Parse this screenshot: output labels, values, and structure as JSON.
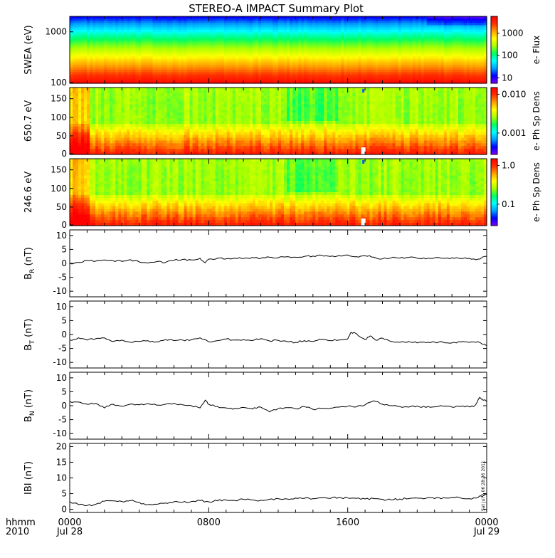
{
  "title": "STEREO-A IMPACT Summary Plot",
  "time_axis": {
    "prefix_top": "hhmm",
    "prefix_bottom": "2010",
    "ticks": [
      {
        "hhmm": "0000",
        "date": "Jul 28",
        "hour": 0
      },
      {
        "hhmm": "0800",
        "date": "",
        "hour": 8
      },
      {
        "hhmm": "1600",
        "date": "",
        "hour": 16
      },
      {
        "hhmm": "0000",
        "date": "Jul 29",
        "hour": 24
      }
    ]
  },
  "stamp": "Sat Jul  2 06:28:36 2011",
  "colors": {
    "colormap": [
      "#7f00ff",
      "#0000ff",
      "#00a0ff",
      "#00ffff",
      "#00ff60",
      "#a8ff00",
      "#ffff00",
      "#ffa000",
      "#ff3000",
      "#ff0000"
    ],
    "line": "#000000"
  },
  "chart_data": [
    {
      "type": "heatmap",
      "panel": "swea",
      "ylabel": "SWEA (eV)",
      "yscale": "log",
      "ylim": [
        100,
        2000
      ],
      "yticks": [
        "1000",
        "100"
      ],
      "cbar_label": "e- Flux",
      "cbar_scale": "log",
      "cbar_ticks": [
        "1000",
        "100",
        "10"
      ],
      "x_hours": [
        0,
        24
      ],
      "description_bands": [
        {
          "energy_eV": 1500,
          "level": 0.15
        },
        {
          "energy_eV": 1100,
          "level": 0.35
        },
        {
          "energy_eV": 800,
          "level": 0.5
        },
        {
          "energy_eV": 550,
          "level": 0.62
        },
        {
          "energy_eV": 350,
          "level": 0.75
        },
        {
          "energy_eV": 220,
          "level": 0.87
        },
        {
          "energy_eV": 120,
          "level": 0.95
        }
      ]
    },
    {
      "type": "heatmap",
      "panel": "pad650",
      "ylabel": "650.7 eV",
      "ylim": [
        0,
        180
      ],
      "yticks": [
        "150",
        "100",
        "50",
        "0"
      ],
      "cbar_label": "e- Ph Sp Dens",
      "cbar_scale": "log",
      "cbar_ticks": [
        "0.010",
        "0.001"
      ],
      "x_hours": [
        0,
        24
      ]
    },
    {
      "type": "heatmap",
      "panel": "pad246",
      "ylabel": "246.6 eV",
      "ylim": [
        0,
        180
      ],
      "yticks": [
        "150",
        "100",
        "50",
        "0"
      ],
      "cbar_label": "e- Ph Sp Dens",
      "cbar_scale": "log",
      "cbar_ticks": [
        "1.0",
        "0.1"
      ],
      "x_hours": [
        0,
        24
      ]
    },
    {
      "type": "line",
      "panel": "br",
      "ylabel": "B",
      "ylabel_sub": "R",
      "ylabel_unit": "(nT)",
      "ylim": [
        -12,
        12
      ],
      "yticks": [
        10,
        5,
        0,
        -5,
        -10
      ],
      "x": [
        0,
        0.5,
        1,
        1.5,
        2,
        2.5,
        3,
        3.5,
        4,
        4.5,
        5,
        5.5,
        6,
        6.5,
        7,
        7.5,
        7.8,
        8,
        8.5,
        9,
        9.5,
        10,
        10.5,
        11,
        11.5,
        12,
        12.5,
        13,
        13.5,
        14,
        14.5,
        15,
        15.5,
        16,
        16.5,
        17,
        17.5,
        18,
        18.5,
        19,
        19.5,
        20,
        20.5,
        21,
        21.5,
        22,
        22.5,
        23,
        23.5,
        24
      ],
      "y": [
        0,
        0.3,
        1,
        0.8,
        1.2,
        0.9,
        0.7,
        1.3,
        0.5,
        0.1,
        0.6,
        0.3,
        1.1,
        1.4,
        1.2,
        1.8,
        0.2,
        1.5,
        1.8,
        1.6,
        1.9,
        1.7,
        2.1,
        1.8,
        2.2,
        2.0,
        2.4,
        2.2,
        2.5,
        2.6,
        2.9,
        2.5,
        2.8,
        3.0,
        2.4,
        2.7,
        2.2,
        1.6,
        2.0,
        1.9,
        2.1,
        1.8,
        1.6,
        2.0,
        1.8,
        2.0,
        1.7,
        1.8,
        1.5,
        2.5
      ]
    },
    {
      "type": "line",
      "panel": "bt",
      "ylabel": "B",
      "ylabel_sub": "T",
      "ylabel_unit": "(nT)",
      "ylim": [
        -12,
        12
      ],
      "yticks": [
        10,
        5,
        0,
        -5,
        -10
      ],
      "x": [
        0,
        0.5,
        1,
        1.5,
        2,
        2.5,
        3,
        3.5,
        4,
        4.5,
        5,
        5.5,
        6,
        6.5,
        7,
        7.5,
        8,
        8.5,
        9,
        9.5,
        10,
        10.5,
        11,
        11.5,
        12,
        12.5,
        13,
        13.5,
        14,
        14.5,
        15,
        15.5,
        16,
        16.2,
        16.5,
        17,
        17.3,
        17.6,
        18,
        18.5,
        19,
        19.5,
        20,
        20.5,
        21,
        21.5,
        22,
        22.5,
        23,
        23.5,
        24
      ],
      "y": [
        -2,
        -1.2,
        -2.0,
        -1.5,
        -1.2,
        -2.5,
        -2.0,
        -2.8,
        -2.5,
        -2.2,
        -2.6,
        -1.8,
        -2.2,
        -2.0,
        -1.9,
        -1.2,
        -2.6,
        -2.2,
        -1.6,
        -2.0,
        -1.8,
        -2.2,
        -1.5,
        -2.3,
        -2.1,
        -2.5,
        -2.8,
        -2.2,
        -2.5,
        -1.7,
        -2.2,
        -2.0,
        -1.6,
        0.8,
        0.3,
        -1.8,
        -0.5,
        -2.0,
        -1.3,
        -2.5,
        -2.8,
        -2.5,
        -3.0,
        -2.9,
        -2.7,
        -2.8,
        -3.0,
        -2.6,
        -2.8,
        -2.6,
        -4.0
      ]
    },
    {
      "type": "line",
      "panel": "bn",
      "ylabel": "B",
      "ylabel_sub": "N",
      "ylabel_unit": "(nT)",
      "ylim": [
        -12,
        12
      ],
      "yticks": [
        10,
        5,
        0,
        -5,
        -10
      ],
      "x": [
        0,
        0.5,
        1,
        1.5,
        2,
        2.5,
        3,
        3.5,
        4,
        4.5,
        5,
        5.5,
        6,
        6.5,
        7,
        7.5,
        7.8,
        8,
        8.5,
        9,
        9.5,
        10,
        10.5,
        11,
        11.5,
        12,
        12.5,
        13,
        13.5,
        14,
        14.5,
        15,
        15.5,
        16,
        16.5,
        17,
        17.5,
        18,
        18.5,
        19,
        19.5,
        20,
        20.5,
        21,
        21.5,
        22,
        22.5,
        23,
        23.3,
        23.6,
        24
      ],
      "y": [
        1.5,
        1.3,
        0.5,
        0.8,
        -0.8,
        0.5,
        -0.2,
        0.6,
        0.3,
        0.8,
        0.2,
        0.5,
        0.9,
        0.3,
        0.0,
        -0.8,
        2.0,
        0.5,
        -0.3,
        -0.8,
        -1.0,
        -0.6,
        -1.2,
        -0.5,
        -2.2,
        -1.0,
        -0.7,
        -1.1,
        -0.3,
        -1.3,
        -1.0,
        -0.9,
        -0.5,
        -0.2,
        -0.4,
        0.3,
        1.8,
        0.5,
        0.0,
        -0.3,
        -0.5,
        -0.1,
        -0.6,
        -0.4,
        -0.2,
        -0.5,
        -0.3,
        -0.4,
        -0.1,
        3.0,
        1.5
      ]
    },
    {
      "type": "line",
      "panel": "bmag",
      "ylabel": "IBI (nT)",
      "ylim": [
        -1,
        21
      ],
      "yticks": [
        20,
        15,
        10,
        5,
        0
      ],
      "x": [
        0,
        0.5,
        1,
        1.5,
        2,
        2.5,
        3,
        3.5,
        4,
        4.5,
        5,
        5.5,
        6,
        6.5,
        7,
        7.5,
        8,
        8.5,
        9,
        9.5,
        10,
        10.5,
        11,
        11.5,
        12,
        12.5,
        13,
        13.5,
        14,
        14.5,
        15,
        15.5,
        16,
        16.5,
        17,
        17.5,
        18,
        18.5,
        19,
        19.5,
        20,
        20.5,
        21,
        21.5,
        22,
        22.5,
        23,
        23.5,
        24
      ],
      "y": [
        2.5,
        1.5,
        1.2,
        1.6,
        2.6,
        2.7,
        2.5,
        2.8,
        2.2,
        1.5,
        1.6,
        2.0,
        2.4,
        2.3,
        2.5,
        2.8,
        2.4,
        2.7,
        3.0,
        2.8,
        3.2,
        3.0,
        2.9,
        3.2,
        3.4,
        3.3,
        3.6,
        3.5,
        3.4,
        3.7,
        3.5,
        3.8,
        3.6,
        3.5,
        3.3,
        3.4,
        3.2,
        3.0,
        3.3,
        3.4,
        3.6,
        3.5,
        3.4,
        3.7,
        3.8,
        3.6,
        3.4,
        3.8,
        4.8
      ]
    }
  ]
}
